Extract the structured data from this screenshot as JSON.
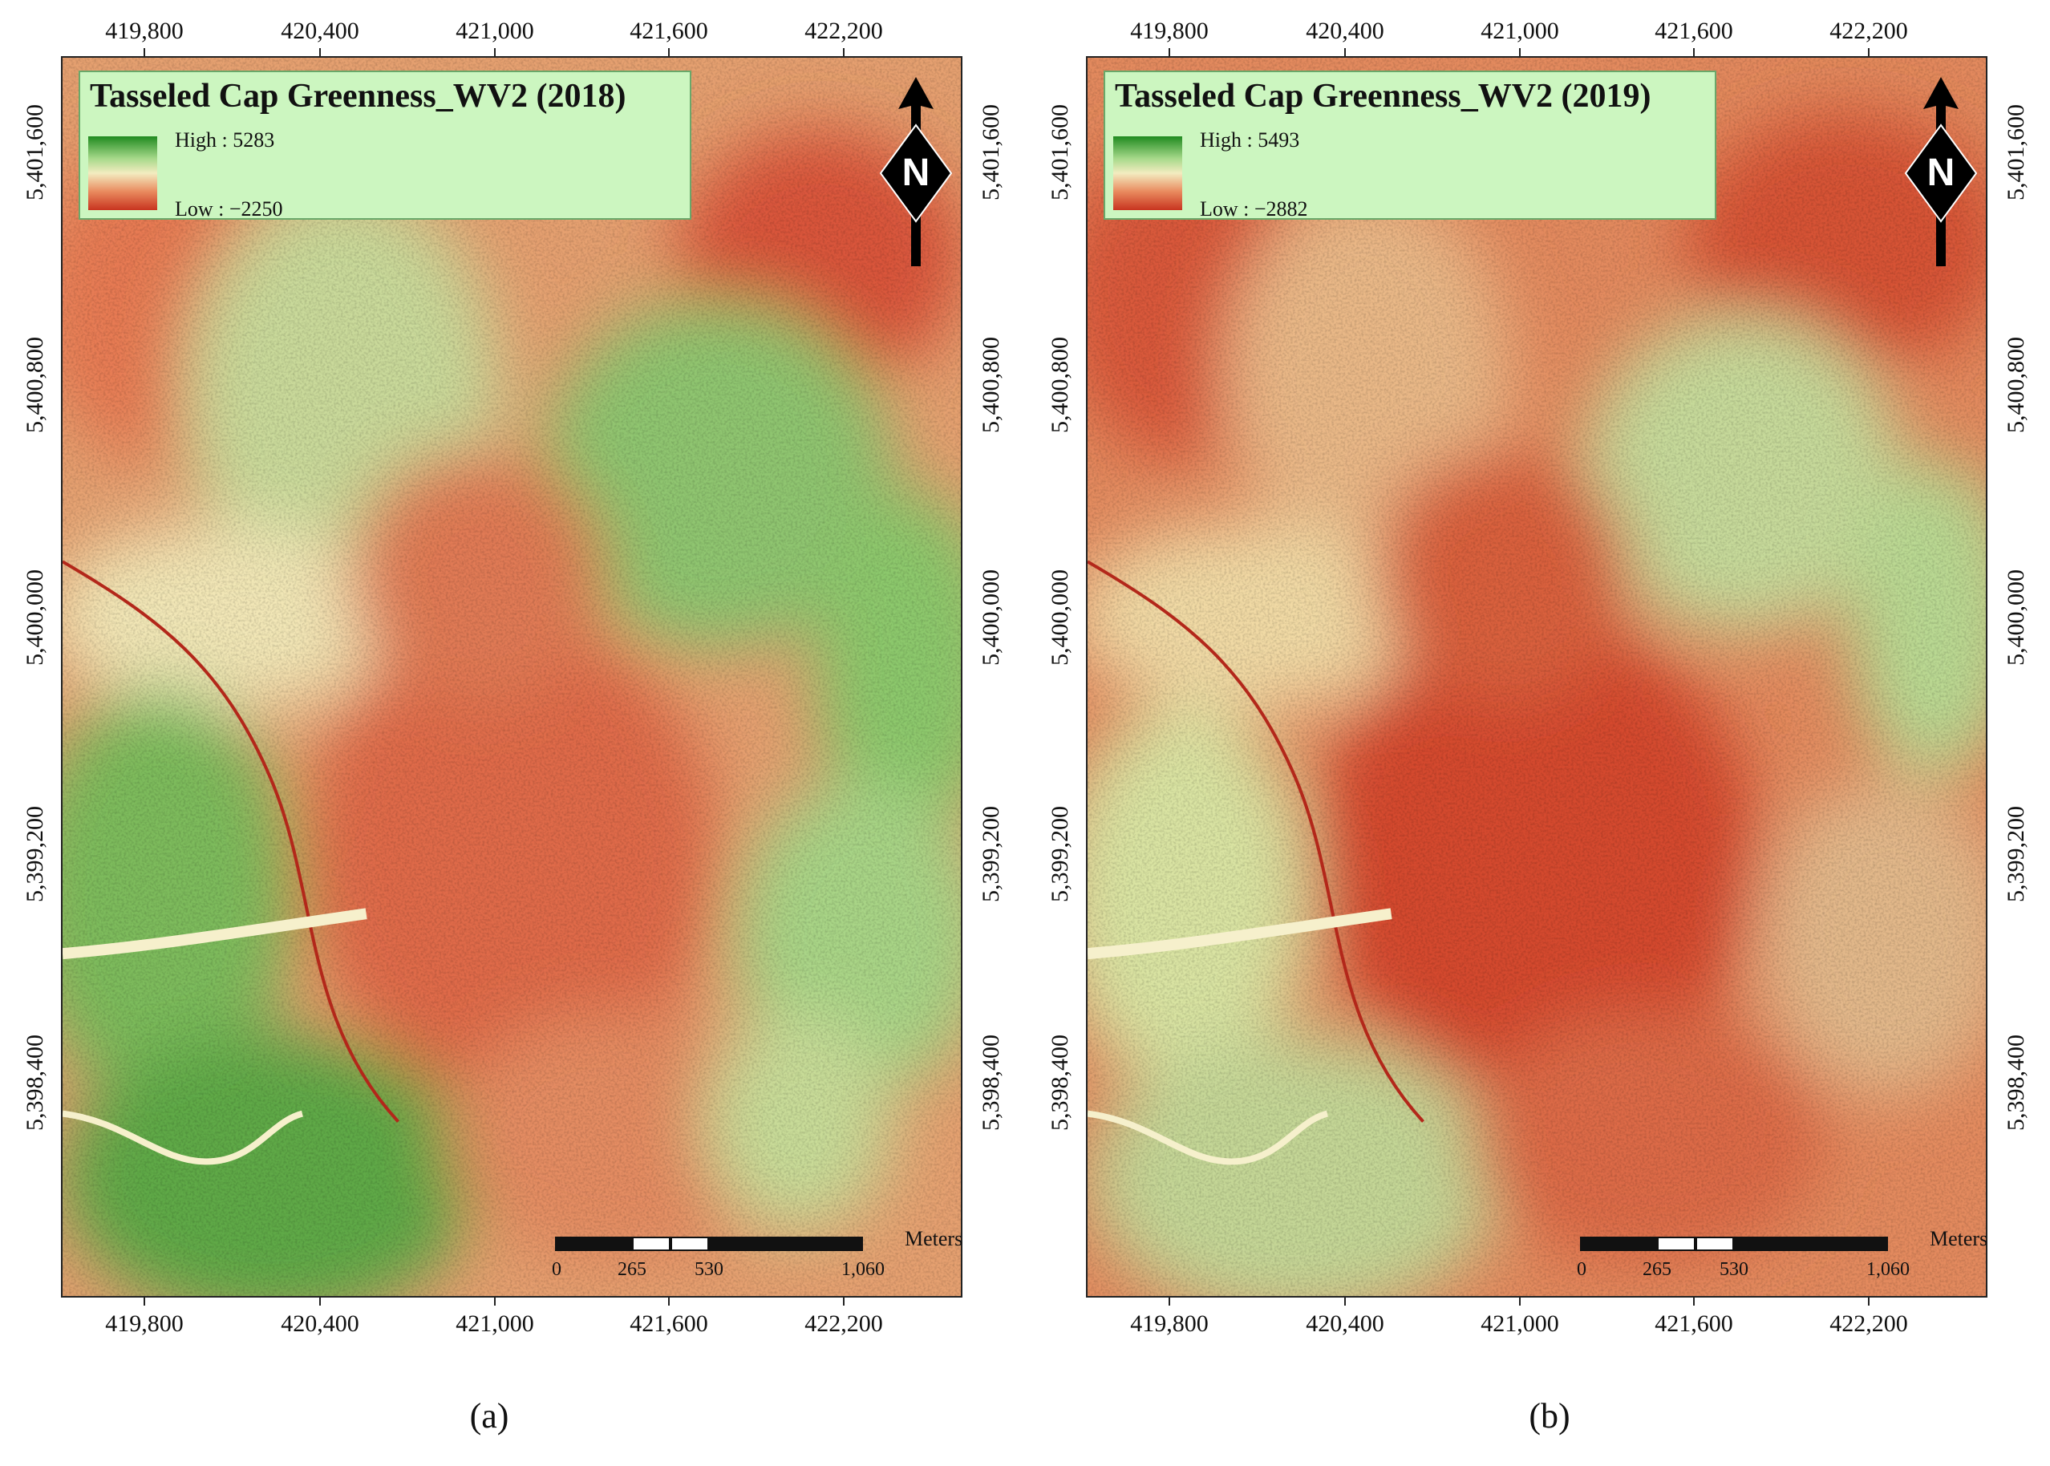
{
  "figure": {
    "panels": [
      {
        "id": "a",
        "caption": "(a)",
        "legend": {
          "title": "Tasseled Cap Greenness_WV2 (2018)",
          "high_label": "High : 5283",
          "low_label": "Low : −2250"
        },
        "x_ticks": [
          "419,800",
          "420,400",
          "421,000",
          "421,600",
          "422,200"
        ],
        "y_ticks": [
          "5,401,600",
          "5,400,800",
          "5,400,000",
          "5,399,200",
          "5,398,400"
        ],
        "scale_bar": {
          "labels": [
            "0",
            "265",
            "530",
            "1,060"
          ],
          "unit": "Meters"
        },
        "north_arrow": {
          "icon": "north-arrow-icon",
          "letter": "N"
        }
      },
      {
        "id": "b",
        "caption": "(b)",
        "legend": {
          "title": "Tasseled Cap Greenness_WV2 (2019)",
          "high_label": "High : 5493",
          "low_label": "Low : −2882"
        },
        "x_ticks": [
          "419,800",
          "420,400",
          "421,000",
          "421,600",
          "422,200"
        ],
        "y_ticks": [
          "5,401,600",
          "5,400,800",
          "5,400,000",
          "5,399,200",
          "5,398,400"
        ],
        "scale_bar": {
          "labels": [
            "0",
            "265",
            "530",
            "1,060"
          ],
          "unit": "Meters"
        },
        "north_arrow": {
          "icon": "north-arrow-icon",
          "letter": "N"
        }
      }
    ],
    "colors": {
      "high": "#1f8a1f",
      "mid": "#f3ecc0",
      "low": "#c8341f",
      "legend_background": "#ccf6c0"
    }
  }
}
